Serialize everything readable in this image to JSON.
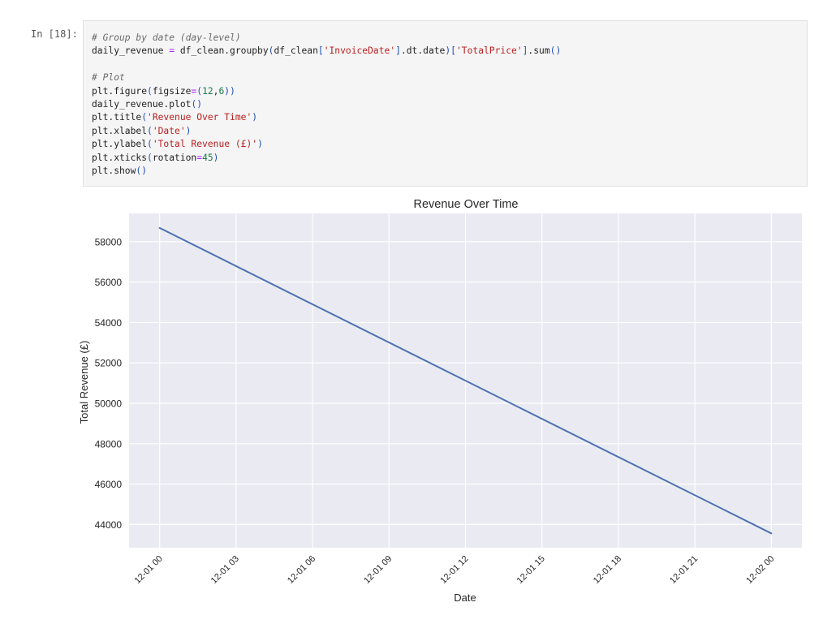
{
  "cell": {
    "prompt": "In [18]:",
    "code_lines": [
      [
        {
          "t": "# Group by date (day-level)",
          "k": "comment"
        }
      ],
      [
        {
          "t": "daily_revenue ",
          "k": "plain"
        },
        {
          "t": "=",
          "k": "op"
        },
        {
          "t": " df_clean.groupby",
          "k": "plain"
        },
        {
          "t": "(",
          "k": "paren"
        },
        {
          "t": "df_clean",
          "k": "plain"
        },
        {
          "t": "[",
          "k": "paren"
        },
        {
          "t": "'InvoiceDate'",
          "k": "string"
        },
        {
          "t": "]",
          "k": "paren"
        },
        {
          "t": ".dt.date",
          "k": "plain"
        },
        {
          "t": ")",
          "k": "paren"
        },
        {
          "t": "[",
          "k": "paren"
        },
        {
          "t": "'TotalPrice'",
          "k": "string"
        },
        {
          "t": "]",
          "k": "paren"
        },
        {
          "t": ".sum",
          "k": "plain"
        },
        {
          "t": "()",
          "k": "paren"
        }
      ],
      [],
      [
        {
          "t": "# Plot",
          "k": "comment"
        }
      ],
      [
        {
          "t": "plt.figure",
          "k": "plain"
        },
        {
          "t": "(",
          "k": "paren"
        },
        {
          "t": "figsize",
          "k": "plain"
        },
        {
          "t": "=",
          "k": "op"
        },
        {
          "t": "(",
          "k": "paren"
        },
        {
          "t": "12",
          "k": "number"
        },
        {
          "t": ",",
          "k": "plain"
        },
        {
          "t": "6",
          "k": "number"
        },
        {
          "t": "))",
          "k": "paren"
        }
      ],
      [
        {
          "t": "daily_revenue.plot",
          "k": "plain"
        },
        {
          "t": "()",
          "k": "paren"
        }
      ],
      [
        {
          "t": "plt.title",
          "k": "plain"
        },
        {
          "t": "(",
          "k": "paren"
        },
        {
          "t": "'Revenue Over Time'",
          "k": "string"
        },
        {
          "t": ")",
          "k": "paren"
        }
      ],
      [
        {
          "t": "plt.xlabel",
          "k": "plain"
        },
        {
          "t": "(",
          "k": "paren"
        },
        {
          "t": "'Date'",
          "k": "string"
        },
        {
          "t": ")",
          "k": "paren"
        }
      ],
      [
        {
          "t": "plt.ylabel",
          "k": "plain"
        },
        {
          "t": "(",
          "k": "paren"
        },
        {
          "t": "'Total Revenue (£)'",
          "k": "string"
        },
        {
          "t": ")",
          "k": "paren"
        }
      ],
      [
        {
          "t": "plt.xticks",
          "k": "plain"
        },
        {
          "t": "(",
          "k": "paren"
        },
        {
          "t": "rotation",
          "k": "plain"
        },
        {
          "t": "=",
          "k": "op"
        },
        {
          "t": "45",
          "k": "number"
        },
        {
          "t": ")",
          "k": "paren"
        }
      ],
      [
        {
          "t": "plt.show",
          "k": "plain"
        },
        {
          "t": "()",
          "k": "paren"
        }
      ]
    ]
  },
  "chart_data": {
    "type": "line",
    "title": "Revenue Over Time",
    "xlabel": "Date",
    "ylabel": "Total Revenue (£)",
    "x_tick_labels": [
      "12-01 00",
      "12-01 03",
      "12-01 06",
      "12-01 09",
      "12-01 12",
      "12-01 15",
      "12-01 18",
      "12-01 21",
      "12-02 00"
    ],
    "x_tick_hours": [
      0,
      3,
      6,
      9,
      12,
      15,
      18,
      21,
      24
    ],
    "x_range_hours": [
      -1.2,
      25.2
    ],
    "y_ticks": [
      44000,
      46000,
      48000,
      50000,
      52000,
      54000,
      56000,
      58000
    ],
    "ylim": [
      42850,
      59400
    ],
    "series": [
      {
        "x_hours": [
          0,
          24
        ],
        "x": [
          "12-01 00",
          "12-02 00"
        ],
        "values": [
          58680,
          43560
        ]
      }
    ],
    "grid": true,
    "colors": {
      "line": "#4c72b0",
      "plot_bg": "#eaeaf2",
      "grid": "#ffffff",
      "text": "#262626"
    }
  }
}
